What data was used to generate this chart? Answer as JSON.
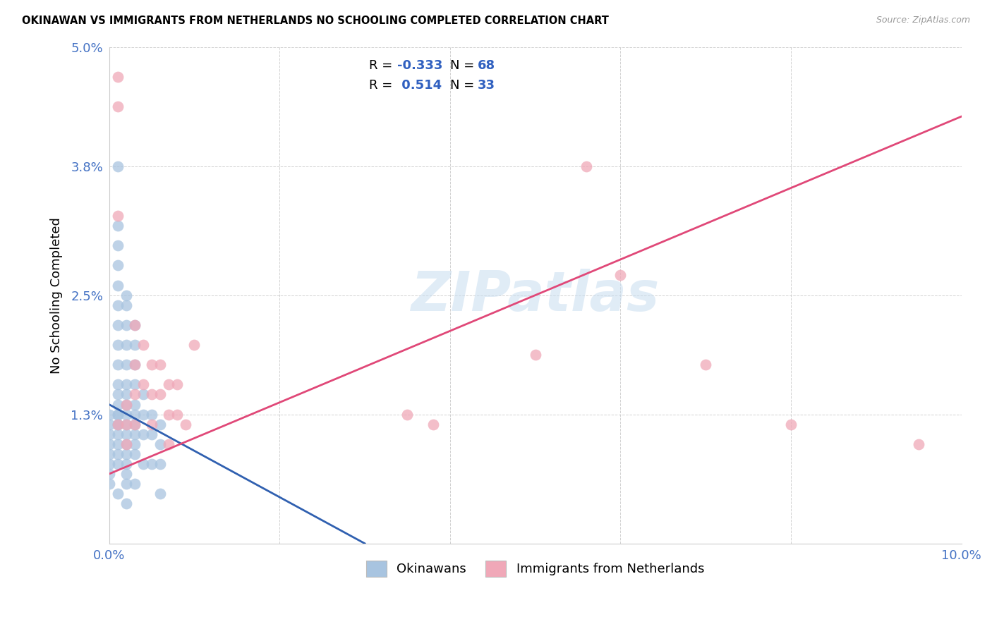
{
  "title": "OKINAWAN VS IMMIGRANTS FROM NETHERLANDS NO SCHOOLING COMPLETED CORRELATION CHART",
  "source": "Source: ZipAtlas.com",
  "ylabel": "No Schooling Completed",
  "xlim": [
    0.0,
    0.1
  ],
  "ylim": [
    0.0,
    0.05
  ],
  "xtick_positions": [
    0.0,
    0.02,
    0.04,
    0.06,
    0.08,
    0.1
  ],
  "xticklabels": [
    "0.0%",
    "",
    "",
    "",
    "",
    "10.0%"
  ],
  "ytick_positions": [
    0.0,
    0.013,
    0.025,
    0.038,
    0.05
  ],
  "yticklabels": [
    "",
    "1.3%",
    "2.5%",
    "3.8%",
    "5.0%"
  ],
  "color_blue": "#a8c4e0",
  "color_pink": "#f0a8b8",
  "line_blue": "#3060b0",
  "line_pink": "#e04878",
  "watermark": "ZIPatlas",
  "ok_x": [
    0.0,
    0.0,
    0.0,
    0.0,
    0.0,
    0.0,
    0.0,
    0.0,
    0.001,
    0.001,
    0.001,
    0.001,
    0.001,
    0.001,
    0.001,
    0.001,
    0.001,
    0.001,
    0.001,
    0.001,
    0.001,
    0.001,
    0.001,
    0.001,
    0.001,
    0.001,
    0.001,
    0.001,
    0.001,
    0.002,
    0.002,
    0.002,
    0.002,
    0.002,
    0.002,
    0.002,
    0.002,
    0.002,
    0.002,
    0.002,
    0.002,
    0.002,
    0.002,
    0.002,
    0.002,
    0.002,
    0.003,
    0.003,
    0.003,
    0.003,
    0.003,
    0.003,
    0.003,
    0.003,
    0.003,
    0.003,
    0.003,
    0.004,
    0.004,
    0.004,
    0.004,
    0.005,
    0.005,
    0.005,
    0.006,
    0.006,
    0.006,
    0.006
  ],
  "ok_y": [
    0.013,
    0.012,
    0.011,
    0.01,
    0.009,
    0.008,
    0.007,
    0.006,
    0.038,
    0.032,
    0.03,
    0.028,
    0.026,
    0.024,
    0.022,
    0.02,
    0.018,
    0.016,
    0.015,
    0.014,
    0.013,
    0.013,
    0.012,
    0.012,
    0.011,
    0.01,
    0.009,
    0.008,
    0.005,
    0.025,
    0.024,
    0.022,
    0.02,
    0.018,
    0.016,
    0.015,
    0.014,
    0.013,
    0.012,
    0.011,
    0.01,
    0.009,
    0.008,
    0.007,
    0.006,
    0.004,
    0.022,
    0.02,
    0.018,
    0.016,
    0.014,
    0.013,
    0.012,
    0.011,
    0.01,
    0.009,
    0.006,
    0.015,
    0.013,
    0.011,
    0.008,
    0.013,
    0.011,
    0.008,
    0.012,
    0.01,
    0.008,
    0.005
  ],
  "nl_x": [
    0.001,
    0.001,
    0.001,
    0.001,
    0.002,
    0.002,
    0.002,
    0.003,
    0.003,
    0.003,
    0.003,
    0.004,
    0.004,
    0.005,
    0.005,
    0.005,
    0.006,
    0.006,
    0.007,
    0.007,
    0.007,
    0.008,
    0.008,
    0.009,
    0.01,
    0.035,
    0.038,
    0.05,
    0.056,
    0.06,
    0.07,
    0.08,
    0.095
  ],
  "nl_y": [
    0.047,
    0.044,
    0.033,
    0.012,
    0.014,
    0.012,
    0.01,
    0.022,
    0.018,
    0.015,
    0.012,
    0.02,
    0.016,
    0.018,
    0.015,
    0.012,
    0.018,
    0.015,
    0.016,
    0.013,
    0.01,
    0.016,
    0.013,
    0.012,
    0.02,
    0.013,
    0.012,
    0.019,
    0.038,
    0.027,
    0.018,
    0.012,
    0.01
  ],
  "blue_line_x": [
    0.0,
    0.03
  ],
  "blue_line_y": [
    0.014,
    0.0
  ],
  "pink_line_x": [
    0.0,
    0.1
  ],
  "pink_line_y": [
    0.007,
    0.043
  ]
}
